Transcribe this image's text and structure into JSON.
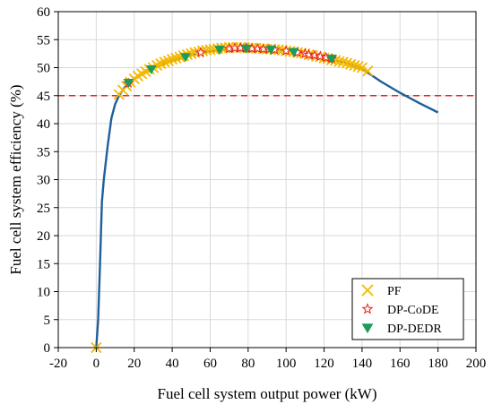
{
  "chart_data": {
    "type": "line",
    "title": "",
    "xlabel": "Fuel cell system output power (kW)",
    "ylabel": "Fuel cell system efficiency (%)",
    "xlim": [
      -20,
      200
    ],
    "ylim": [
      0,
      60
    ],
    "xticks": [
      "-20",
      "0",
      "20",
      "40",
      "60",
      "80",
      "100",
      "120",
      "140",
      "160",
      "180",
      "200"
    ],
    "yticks": [
      "0",
      "5",
      "10",
      "15",
      "20",
      "25",
      "30",
      "35",
      "40",
      "45",
      "50",
      "55",
      "60"
    ],
    "grid": true,
    "legend_position": "bottom-right",
    "efficiency_curve": {
      "color": "#1f5f99",
      "x": [
        0,
        1,
        2,
        3,
        4,
        6,
        8,
        10,
        12,
        15,
        20,
        30,
        40,
        50,
        60,
        70,
        80,
        90,
        100,
        110,
        120,
        130,
        140,
        150,
        160,
        170,
        180
      ],
      "y": [
        0,
        5,
        15,
        26,
        30,
        36,
        41,
        43.5,
        45,
        46.5,
        48,
        50,
        51.3,
        52.3,
        53,
        53.3,
        53.3,
        53.2,
        53,
        52.5,
        51.8,
        51,
        49.8,
        47.5,
        45.5,
        43.7,
        42
      ]
    },
    "threshold_line": {
      "y": 45,
      "color": "#e8201c"
    },
    "series": [
      {
        "name": "PF",
        "marker": "x",
        "color": "#f5b800",
        "x": [
          0,
          12,
          14,
          16,
          18,
          20,
          22,
          24,
          26,
          28,
          30,
          32,
          34,
          36,
          38,
          40,
          42,
          44,
          46,
          48,
          50,
          52,
          54,
          56,
          58,
          60,
          62,
          64,
          66,
          68,
          70,
          72,
          74,
          76,
          78,
          80,
          82,
          84,
          86,
          88,
          90,
          92,
          94,
          96,
          98,
          100,
          102,
          104,
          106,
          108,
          110,
          112,
          114,
          116,
          118,
          120,
          122,
          124,
          126,
          128,
          130,
          132,
          134,
          136,
          138,
          140,
          143
        ],
        "y": [
          0,
          45.2,
          46,
          46.7,
          47.4,
          48,
          48.5,
          48.9,
          49.3,
          49.7,
          50,
          50.4,
          50.7,
          51,
          51.2,
          51.5,
          51.7,
          51.9,
          52.1,
          52.3,
          52.5,
          52.7,
          52.8,
          53,
          53.1,
          53.2,
          53.3,
          53.4,
          53.5,
          53.5,
          53.6,
          53.6,
          53.6,
          53.6,
          53.6,
          53.5,
          53.5,
          53.5,
          53.4,
          53.4,
          53.3,
          53.3,
          53.2,
          53.2,
          53.1,
          53,
          52.9,
          52.8,
          52.7,
          52.6,
          52.5,
          52.3,
          52.2,
          52,
          51.9,
          51.7,
          51.6,
          51.4,
          51.3,
          51.1,
          51,
          50.8,
          50.6,
          50.4,
          50.2,
          50,
          49.4
        ]
      },
      {
        "name": "DP-CoDE",
        "marker": "star",
        "color": "#e8201c",
        "x": [
          17,
          55,
          70,
          73,
          76,
          79,
          82,
          85,
          88,
          91,
          94,
          100,
          106,
          110,
          112,
          115,
          118,
          121,
          124
        ],
        "y": [
          47.2,
          52.7,
          53.4,
          53.5,
          53.5,
          53.5,
          53.4,
          53.4,
          53.3,
          53.3,
          53.2,
          53,
          52.7,
          52.5,
          52.3,
          52.2,
          52,
          51.8,
          51.6
        ]
      },
      {
        "name": "DP-DEDR",
        "marker": "triangle-down",
        "color": "#1a9c5b",
        "x": [
          17,
          29,
          47,
          65,
          79,
          92,
          104,
          124
        ],
        "y": [
          47.3,
          49.7,
          51.9,
          53.2,
          53.4,
          53.2,
          52.8,
          51.6
        ]
      }
    ]
  }
}
